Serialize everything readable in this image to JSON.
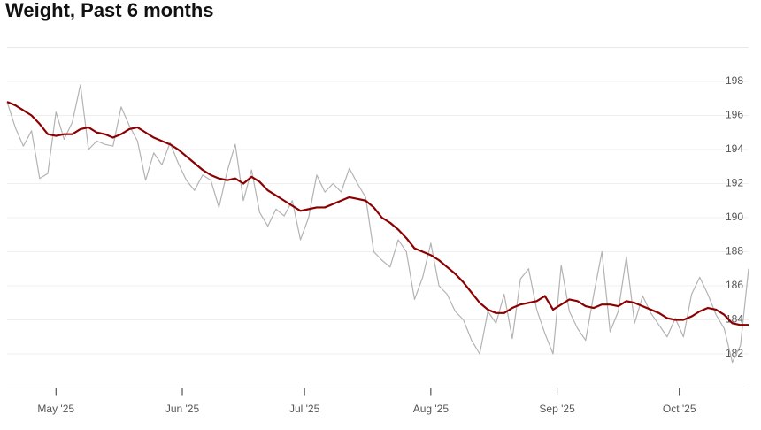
{
  "chart_data": {
    "type": "line",
    "title": "Weight, Past 6 months",
    "x": [
      109,
      111,
      113,
      115,
      117,
      119,
      121,
      123,
      125,
      127,
      129,
      131,
      133,
      135,
      137,
      139,
      141,
      143,
      145,
      147,
      149,
      151,
      153,
      155,
      157,
      159,
      161,
      163,
      165,
      167,
      169,
      171,
      173,
      175,
      177,
      179,
      181,
      183,
      185,
      187,
      189,
      191,
      193,
      195,
      197,
      199,
      201,
      203,
      205,
      207,
      209,
      211,
      213,
      215,
      217,
      219,
      221,
      223,
      225,
      227,
      229,
      231,
      233,
      235,
      237,
      239,
      241,
      243,
      245,
      247,
      249,
      251,
      253,
      255,
      257,
      259,
      261,
      263,
      265,
      267,
      269,
      271,
      273,
      275,
      277,
      279,
      281,
      283,
      285,
      287,
      289,
      291
    ],
    "series": [
      {
        "color": "#b3b3b3",
        "values": [
          196.8,
          195.3,
          194.2,
          195.1,
          192.3,
          192.6,
          196.2,
          194.6,
          195.6,
          197.8,
          194.0,
          194.5,
          194.3,
          194.2,
          196.5,
          195.4,
          194.5,
          192.2,
          193.8,
          193.1,
          194.4,
          193.2,
          192.2,
          191.6,
          192.5,
          192.2,
          190.6,
          192.7,
          194.3,
          191.0,
          192.8,
          190.3,
          189.5,
          190.5,
          190.1,
          191.0,
          188.7,
          190.0,
          192.5,
          191.5,
          192.0,
          191.5,
          192.9,
          192.0,
          191.2,
          188.0,
          187.5,
          187.1,
          188.7,
          188.0,
          185.2,
          186.5,
          188.5,
          186.0,
          185.5,
          184.5,
          184.0,
          182.8,
          182.0,
          184.5,
          183.8,
          185.5,
          182.9,
          186.4,
          187.0,
          184.6,
          183.2,
          182.0,
          187.2,
          184.5,
          183.5,
          182.8,
          185.5,
          188.0,
          183.3,
          184.5,
          187.7,
          183.8,
          185.4,
          184.4,
          183.7,
          183.0,
          184.1,
          183.0,
          185.5,
          186.5,
          185.5,
          184.3,
          183.5,
          181.5,
          182.5,
          187.0
        ]
      },
      {
        "color": "#8b0000",
        "values": [
          196.8,
          196.6,
          196.3,
          196.0,
          195.5,
          194.9,
          194.8,
          194.9,
          194.9,
          195.2,
          195.3,
          195.0,
          194.9,
          194.7,
          194.9,
          195.2,
          195.3,
          195.0,
          194.7,
          194.5,
          194.3,
          194.0,
          193.6,
          193.2,
          192.8,
          192.5,
          192.3,
          192.2,
          192.3,
          192.0,
          192.4,
          192.1,
          191.6,
          191.3,
          191.0,
          190.7,
          190.4,
          190.5,
          190.6,
          190.6,
          190.8,
          191.0,
          191.2,
          191.1,
          191.0,
          190.6,
          190.0,
          189.7,
          189.3,
          188.8,
          188.2,
          188.0,
          187.8,
          187.5,
          187.1,
          186.7,
          186.2,
          185.6,
          185.0,
          184.6,
          184.4,
          184.4,
          184.7,
          184.9,
          185.0,
          185.1,
          185.4,
          184.6,
          184.9,
          185.2,
          185.1,
          184.8,
          184.7,
          184.9,
          184.9,
          184.8,
          185.1,
          185.0,
          184.8,
          184.6,
          184.4,
          184.1,
          184.0,
          184.0,
          184.2,
          184.5,
          184.7,
          184.6,
          184.3,
          183.8,
          183.7,
          183.7
        ]
      }
    ],
    "xlim": [
      109,
      291
    ],
    "xticks": [
      {
        "value": 121,
        "label": "May '25"
      },
      {
        "value": 152,
        "label": "Jun '25"
      },
      {
        "value": 182,
        "label": "Jul '25"
      },
      {
        "value": 213,
        "label": "Aug '25"
      },
      {
        "value": 244,
        "label": "Sep '25"
      },
      {
        "value": 274,
        "label": "Oct '25"
      }
    ],
    "ylim": [
      180,
      200
    ],
    "yticks": [
      182,
      184,
      186,
      188,
      190,
      192,
      194,
      196,
      198
    ],
    "grid": true
  }
}
